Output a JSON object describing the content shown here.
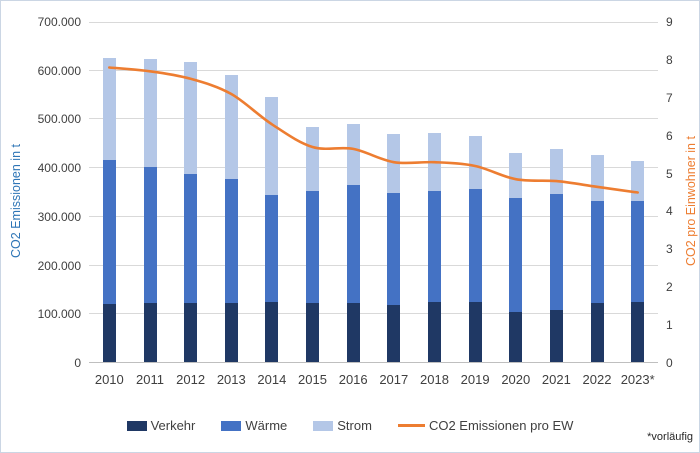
{
  "chart_data": {
    "type": "bar",
    "subtype": "stacked-columns-with-line-overlay",
    "categories": [
      "2010",
      "2011",
      "2012",
      "2013",
      "2014",
      "2015",
      "2016",
      "2017",
      "2018",
      "2019",
      "2020",
      "2021",
      "2022",
      "2023*"
    ],
    "series": [
      {
        "name": "Verkehr",
        "type": "column",
        "stack": "co2",
        "color": "#1F3864",
        "values": [
          120000,
          122000,
          121000,
          122000,
          124000,
          121000,
          122000,
          118000,
          123000,
          123000,
          103000,
          107000,
          121000,
          123000
        ]
      },
      {
        "name": "Wärme",
        "type": "column",
        "stack": "co2",
        "color": "#4472C4",
        "values": [
          295000,
          278000,
          266000,
          254000,
          218000,
          231000,
          242000,
          229000,
          228000,
          233000,
          233000,
          237000,
          210000,
          208000
        ]
      },
      {
        "name": "Strom",
        "type": "column",
        "stack": "co2",
        "color": "#B4C7E7",
        "values": [
          210000,
          223000,
          228000,
          213000,
          202000,
          131000,
          125000,
          120000,
          120000,
          109000,
          94000,
          94000,
          94000,
          82000
        ]
      },
      {
        "name": "CO2 Emissionen pro EW",
        "type": "line",
        "axis": "right",
        "color": "#ED7D31",
        "values": [
          7.8,
          7.7,
          7.5,
          7.1,
          6.3,
          5.7,
          5.65,
          5.3,
          5.3,
          5.2,
          4.85,
          4.8,
          4.65,
          4.5
        ]
      }
    ],
    "stack_totals": [
      625000,
      623000,
      615000,
      589000,
      544000,
      483000,
      489000,
      467000,
      471000,
      465000,
      430000,
      438000,
      425000,
      413000
    ],
    "left_axis": {
      "title": "CO2 Emissionen in t",
      "title_color": "#2E75B6",
      "min": 0,
      "max": 700000,
      "step": 100000,
      "ticks": [
        "700.000",
        "600.000",
        "500.000",
        "400.000",
        "300.000",
        "200.000",
        "100.000",
        "0"
      ]
    },
    "right_axis": {
      "title": "CO2  pro Einwohner in t",
      "title_color": "#ED7D31",
      "min": 0,
      "max": 9,
      "step": 1,
      "ticks": [
        "9",
        "8",
        "7",
        "6",
        "5",
        "4",
        "3",
        "2",
        "1",
        "0"
      ]
    },
    "grid": true,
    "legend_position": "bottom",
    "footnote": "*vorläufig"
  },
  "style": {
    "grid_color": "#D9D9D9",
    "axis_line_color": "#BFBFBF",
    "tick_color": "#404040",
    "background": "#FFFFFF",
    "border_color": "#CBD6E4"
  }
}
